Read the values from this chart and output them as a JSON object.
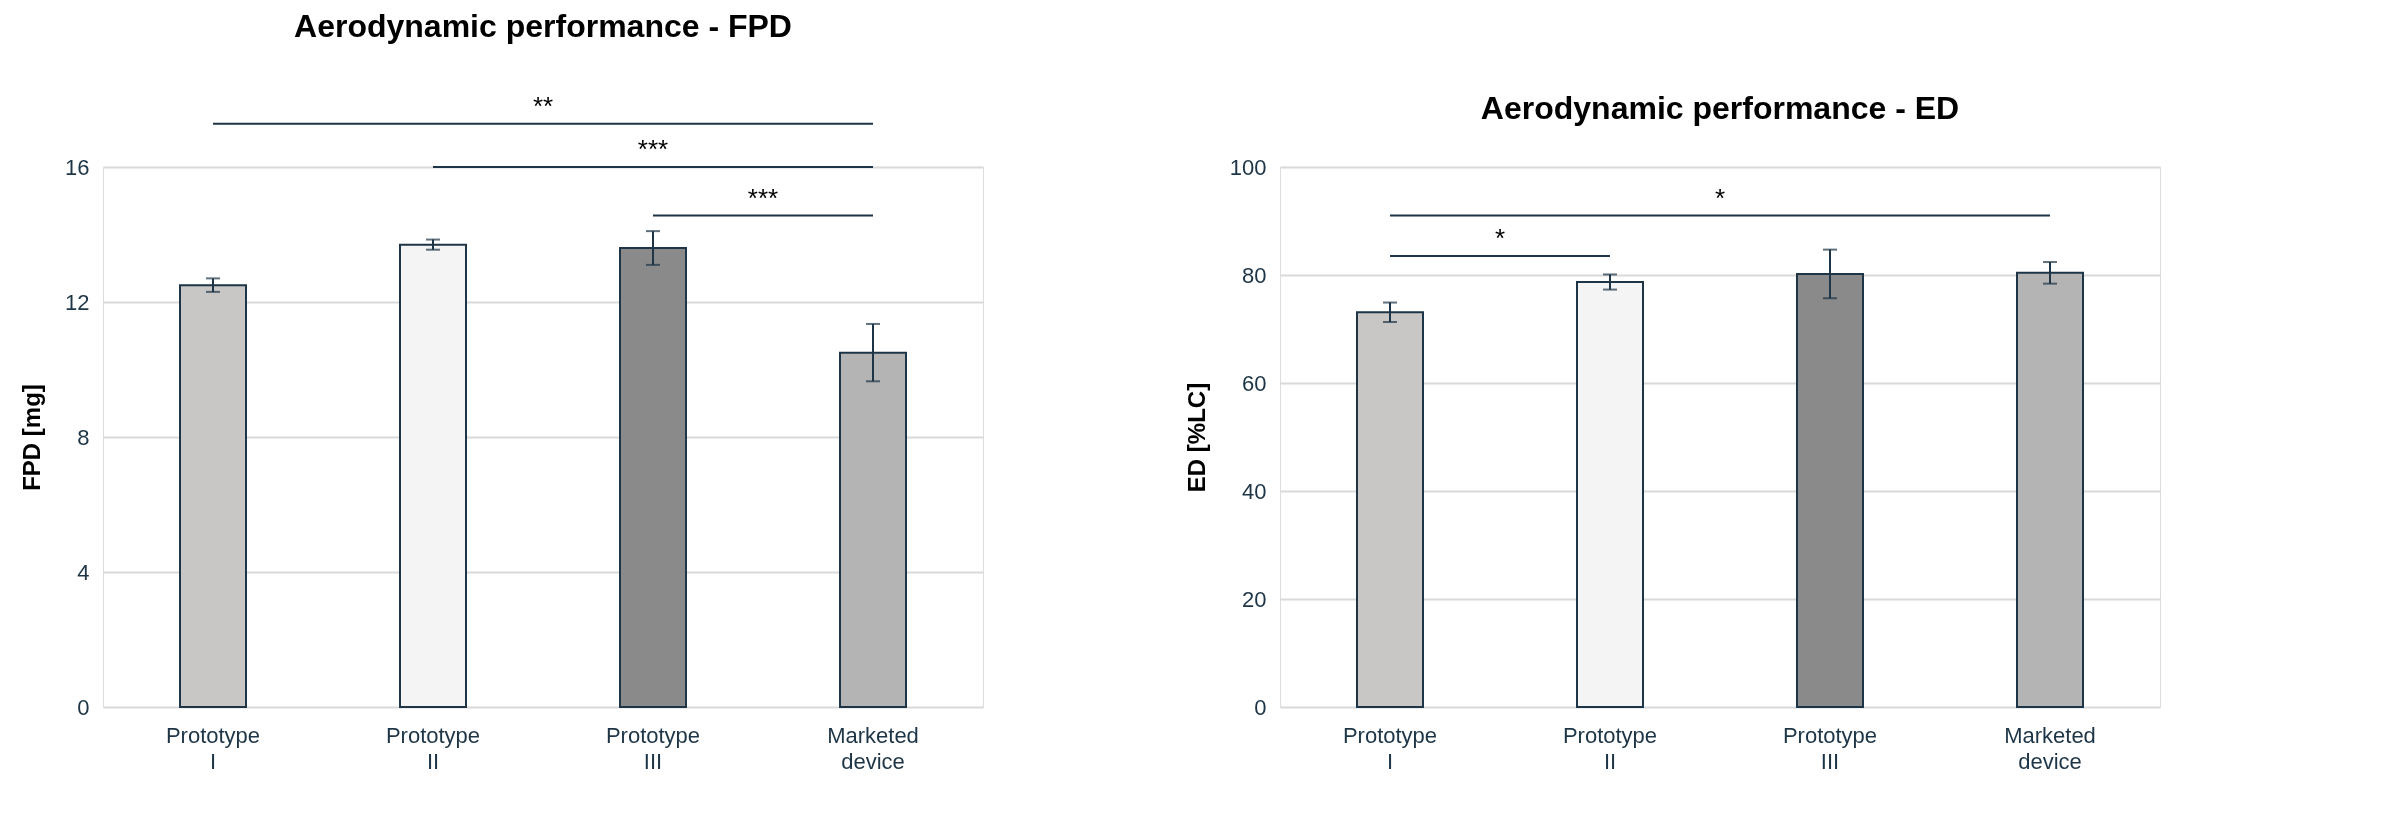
{
  "chart_data": [
    {
      "type": "bar",
      "title": "Aerodynamic performance - FPD",
      "ylabel": "FPD [mg]",
      "categories": [
        "Prototype I",
        "Prototype II",
        "Prototype III",
        "Marketed device"
      ],
      "values": [
        12.5,
        13.7,
        13.6,
        10.5
      ],
      "errors": [
        0.2,
        0.15,
        0.5,
        0.85
      ],
      "colors": [
        "#c8c7c6",
        "#f4f4f4",
        "#8a8a8a",
        "#b4b4b4"
      ],
      "ylim": [
        0,
        16
      ],
      "yticks": [
        0,
        4,
        8,
        12,
        16
      ],
      "grid": "y",
      "annotations": [
        "**",
        "***",
        "***"
      ]
    },
    {
      "type": "bar",
      "title": "Aerodynamic performance - ED",
      "ylabel": "ED [%LC]",
      "categories": [
        "Prototype I",
        "Prototype II",
        "Prototype III",
        "Marketed device"
      ],
      "values": [
        73.1,
        78.7,
        80.2,
        80.4
      ],
      "errors": [
        1.8,
        1.4,
        4.5,
        2.0
      ],
      "colors": [
        "#c8c7c6",
        "#f4f4f4",
        "#8a8a8a",
        "#b4b4b4"
      ],
      "ylim": [
        0,
        100
      ],
      "yticks": [
        0,
        20,
        40,
        60,
        80,
        100
      ],
      "grid": "y",
      "annotations": [
        "*",
        "*"
      ]
    }
  ]
}
